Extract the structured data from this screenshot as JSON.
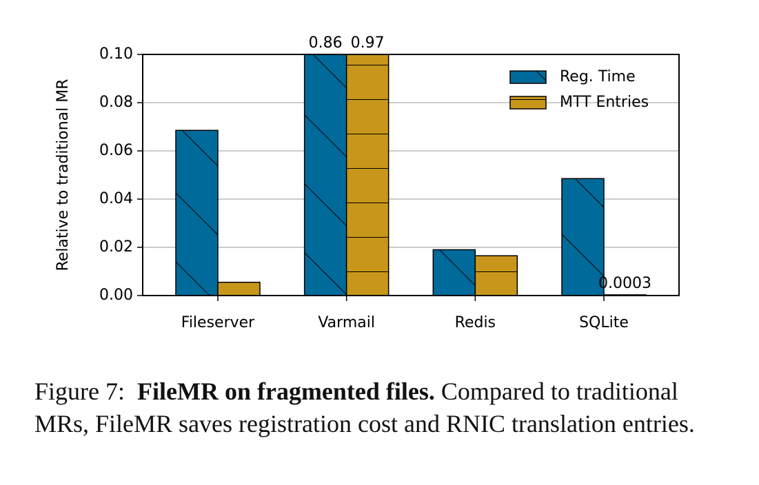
{
  "chart_data": {
    "type": "bar",
    "ylabel": "Relative to traditional MR",
    "categories": [
      "Fileserver",
      "Varmail",
      "Redis",
      "SQLite"
    ],
    "series": [
      {
        "name": "Reg. Time",
        "color": "#006a9a",
        "hatch": "diagonal",
        "values": [
          0.0685,
          0.86,
          0.019,
          0.0485
        ],
        "value_labels": [
          null,
          "0.86",
          null,
          null
        ]
      },
      {
        "name": "MTT Entries",
        "color": "#c8961a",
        "hatch": "horizontal",
        "values": [
          0.0055,
          0.97,
          0.0165,
          0.0003
        ],
        "value_labels": [
          null,
          "0.97",
          null,
          "0.0003"
        ]
      }
    ],
    "ylim": [
      0,
      0.1
    ],
    "yticks": [
      {
        "value": 0,
        "label": "0.00"
      },
      {
        "value": 0.02,
        "label": "0.02"
      },
      {
        "value": 0.04,
        "label": "0.04"
      },
      {
        "value": 0.06,
        "label": "0.06"
      },
      {
        "value": 0.08,
        "label": "0.08"
      },
      {
        "value": 0.1,
        "label": "0.10"
      }
    ],
    "grid": true,
    "legend": "upper right"
  },
  "caption": {
    "label": "Figure 7:",
    "title": "FileMR on fragmented files.",
    "text": "Compared to traditional MRs, FileMR saves registration cost and RNIC translation entries."
  }
}
